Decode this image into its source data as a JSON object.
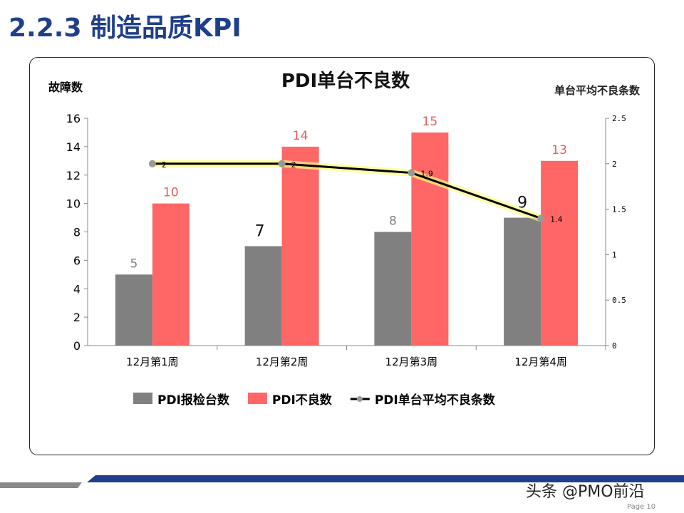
{
  "slide_title": "2.2.3  制造品质KPI",
  "watermark": "头条 @PMO前沿",
  "page_label": "Page 10",
  "chart_data": {
    "type": "bar",
    "title": "PDI单台不良数",
    "ylabel": "故障数",
    "y2label": "单台平均不良条数",
    "categories": [
      "12月第1周",
      "12月第2周",
      "12月第3周",
      "12月第4周"
    ],
    "ylim": [
      0,
      16
    ],
    "yticks": [
      0,
      2,
      4,
      6,
      8,
      10,
      12,
      14,
      16
    ],
    "y2lim": [
      0,
      2.5
    ],
    "y2ticks": [
      "0",
      "0.5",
      "1",
      "1.5",
      "2",
      "2.5"
    ],
    "series": [
      {
        "name": "PDI报检台数",
        "type": "bar",
        "color": "#808080",
        "values": [
          5,
          7,
          8,
          9
        ]
      },
      {
        "name": "PDI不良数",
        "type": "bar",
        "color": "#ff6666",
        "values": [
          10,
          14,
          15,
          13
        ]
      },
      {
        "name": "PDI单台平均不良条数",
        "type": "line",
        "axis": "right",
        "color": "#000000",
        "values": [
          2,
          2,
          1.9,
          1.4
        ]
      }
    ],
    "legend": "bottom"
  }
}
